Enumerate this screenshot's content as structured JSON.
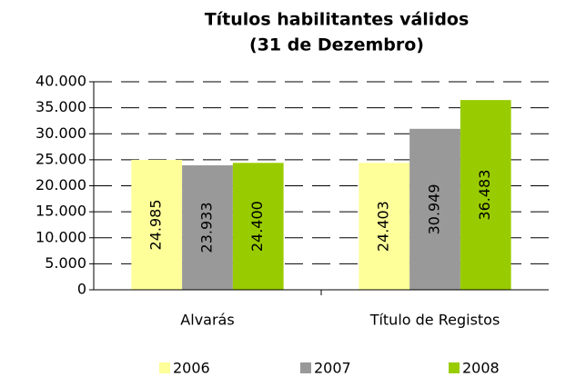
{
  "chart_data": {
    "type": "bar",
    "title": [
      "Títulos habilitantes válidos",
      "(31 de Dezembro)"
    ],
    "categories": [
      "Alvarás",
      "Título de Registos"
    ],
    "series": [
      {
        "name": "2006",
        "color": "#ffff99",
        "values": [
          24985,
          24403
        ],
        "value_labels": [
          "24.985",
          "24.403"
        ]
      },
      {
        "name": "2007",
        "color": "#999999",
        "values": [
          23933,
          30949
        ],
        "value_labels": [
          "23.933",
          "30.949"
        ]
      },
      {
        "name": "2008",
        "color": "#99cc00",
        "values": [
          24400,
          36483
        ],
        "value_labels": [
          "24.400",
          "36.483"
        ]
      }
    ],
    "ylim": [
      0,
      40000
    ],
    "yticks": [
      0,
      {
        "value": 5000,
        "label": "5.000"
      },
      {
        "value": 10000,
        "label": "10.000"
      },
      {
        "value": 15000,
        "label": "15.000"
      },
      {
        "value": 20000,
        "label": "20.000"
      },
      {
        "value": 25000,
        "label": "25.000"
      },
      {
        "value": 30000,
        "label": "30.000"
      },
      {
        "value": 35000,
        "label": "35.000"
      },
      {
        "value": 40000,
        "label": "40.000"
      }
    ],
    "grid": true,
    "legend": "bottom"
  }
}
